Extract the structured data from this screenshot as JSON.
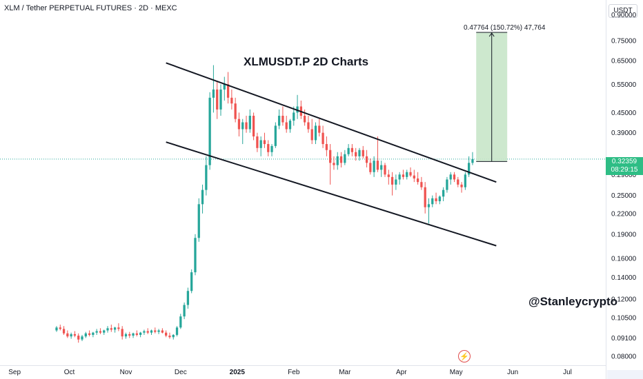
{
  "header": {
    "symbol_line": "XLM / Tether PERPETUAL FUTURES · 2D · MEXC",
    "currency": "USDT"
  },
  "annotations": {
    "title": "XLMUSDT.P 2D Charts",
    "measure": "0.47764 (150.72%) 47,764",
    "watermark": "@Stanleycrypto"
  },
  "price_tag": {
    "price": "0.32359",
    "countdown": "08:29:15"
  },
  "colors": {
    "up": "#26a69a",
    "down": "#ef5350",
    "target_zone": "#c8e6c9",
    "tag": "#2ebd85",
    "channel": "#131722"
  },
  "icons": {
    "logo": "tradingview-logo-icon"
  },
  "chart_data": {
    "type": "candlestick",
    "title": "XLMUSDT.P 2D Charts",
    "y_scale": "log",
    "ylim": [
      0.075,
      1.0
    ],
    "xlim": [
      "2024-08-24",
      "2025-07-22"
    ],
    "y_ticks": [
      "0.90000",
      "0.75000",
      "0.65000",
      "0.55000",
      "0.45000",
      "0.39000",
      "0.29000",
      "0.25000",
      "0.22000",
      "0.19000",
      "0.16000",
      "0.14000",
      "0.12000",
      "0.10500",
      "0.09100",
      "0.08000"
    ],
    "x_ticks": [
      {
        "label": "Sep",
        "date": "2024-09-01",
        "bold": false
      },
      {
        "label": "Oct",
        "date": "2024-10-01",
        "bold": false
      },
      {
        "label": "Nov",
        "date": "2024-11-01",
        "bold": false
      },
      {
        "label": "Dec",
        "date": "2024-12-01",
        "bold": false
      },
      {
        "label": "2025",
        "date": "2025-01-01",
        "bold": true
      },
      {
        "label": "Feb",
        "date": "2025-02-01",
        "bold": false
      },
      {
        "label": "Mar",
        "date": "2025-03-01",
        "bold": false
      },
      {
        "label": "Apr",
        "date": "2025-04-01",
        "bold": false
      },
      {
        "label": "May",
        "date": "2025-05-01",
        "bold": false
      },
      {
        "label": "Jun",
        "date": "2025-06-01",
        "bold": false
      },
      {
        "label": "Jul",
        "date": "2025-07-01",
        "bold": false
      }
    ],
    "last_price": 0.32359,
    "channel": {
      "upper": [
        [
          "2024-11-23",
          0.64
        ],
        [
          "2025-05-23",
          0.275
        ]
      ],
      "lower": [
        [
          "2024-11-23",
          0.365
        ],
        [
          "2025-05-23",
          0.175
        ]
      ]
    },
    "target_zone": {
      "x": [
        "2025-05-12",
        "2025-05-29"
      ],
      "y": [
        0.318,
        0.795
      ],
      "change": "0.47764 (150.72%)"
    },
    "candles": [
      {
        "o": 0.096,
        "h": 0.099,
        "l": 0.095,
        "c": 0.098
      },
      {
        "o": 0.098,
        "h": 0.1,
        "l": 0.096,
        "c": 0.097
      },
      {
        "o": 0.097,
        "h": 0.099,
        "l": 0.093,
        "c": 0.094
      },
      {
        "o": 0.094,
        "h": 0.096,
        "l": 0.091,
        "c": 0.092
      },
      {
        "o": 0.092,
        "h": 0.0945,
        "l": 0.0905,
        "c": 0.0935
      },
      {
        "o": 0.0935,
        "h": 0.0955,
        "l": 0.0915,
        "c": 0.0925
      },
      {
        "o": 0.0925,
        "h": 0.094,
        "l": 0.088,
        "c": 0.09
      },
      {
        "o": 0.09,
        "h": 0.093,
        "l": 0.089,
        "c": 0.092
      },
      {
        "o": 0.092,
        "h": 0.095,
        "l": 0.091,
        "c": 0.094
      },
      {
        "o": 0.094,
        "h": 0.096,
        "l": 0.092,
        "c": 0.093
      },
      {
        "o": 0.093,
        "h": 0.095,
        "l": 0.0915,
        "c": 0.0945
      },
      {
        "o": 0.0945,
        "h": 0.097,
        "l": 0.093,
        "c": 0.0955
      },
      {
        "o": 0.0955,
        "h": 0.0975,
        "l": 0.0935,
        "c": 0.0945
      },
      {
        "o": 0.0945,
        "h": 0.0965,
        "l": 0.093,
        "c": 0.096
      },
      {
        "o": 0.096,
        "h": 0.099,
        "l": 0.0945,
        "c": 0.0975
      },
      {
        "o": 0.0975,
        "h": 0.1,
        "l": 0.095,
        "c": 0.0965
      },
      {
        "o": 0.0965,
        "h": 0.0985,
        "l": 0.0945,
        "c": 0.098
      },
      {
        "o": 0.098,
        "h": 0.101,
        "l": 0.0955,
        "c": 0.097
      },
      {
        "o": 0.097,
        "h": 0.099,
        "l": 0.09,
        "c": 0.092
      },
      {
        "o": 0.092,
        "h": 0.0945,
        "l": 0.0905,
        "c": 0.0935
      },
      {
        "o": 0.0935,
        "h": 0.095,
        "l": 0.091,
        "c": 0.0925
      },
      {
        "o": 0.0925,
        "h": 0.0945,
        "l": 0.091,
        "c": 0.094
      },
      {
        "o": 0.094,
        "h": 0.096,
        "l": 0.092,
        "c": 0.093
      },
      {
        "o": 0.093,
        "h": 0.095,
        "l": 0.0915,
        "c": 0.0945
      },
      {
        "o": 0.0945,
        "h": 0.0965,
        "l": 0.093,
        "c": 0.0955
      },
      {
        "o": 0.0955,
        "h": 0.0975,
        "l": 0.0935,
        "c": 0.0945
      },
      {
        "o": 0.0945,
        "h": 0.0965,
        "l": 0.093,
        "c": 0.096
      },
      {
        "o": 0.096,
        "h": 0.098,
        "l": 0.094,
        "c": 0.095
      },
      {
        "o": 0.095,
        "h": 0.097,
        "l": 0.0935,
        "c": 0.096
      },
      {
        "o": 0.096,
        "h": 0.0975,
        "l": 0.094,
        "c": 0.0945
      },
      {
        "o": 0.0945,
        "h": 0.096,
        "l": 0.0915,
        "c": 0.0925
      },
      {
        "o": 0.0925,
        "h": 0.0945,
        "l": 0.0905,
        "c": 0.0915
      },
      {
        "o": 0.0915,
        "h": 0.0935,
        "l": 0.09,
        "c": 0.093
      },
      {
        "o": 0.093,
        "h": 0.099,
        "l": 0.092,
        "c": 0.098
      },
      {
        "o": 0.098,
        "h": 0.108,
        "l": 0.097,
        "c": 0.106
      },
      {
        "o": 0.106,
        "h": 0.117,
        "l": 0.104,
        "c": 0.115
      },
      {
        "o": 0.115,
        "h": 0.13,
        "l": 0.112,
        "c": 0.127
      },
      {
        "o": 0.127,
        "h": 0.148,
        "l": 0.125,
        "c": 0.145
      },
      {
        "o": 0.145,
        "h": 0.19,
        "l": 0.142,
        "c": 0.185
      },
      {
        "o": 0.185,
        "h": 0.245,
        "l": 0.18,
        "c": 0.235
      },
      {
        "o": 0.235,
        "h": 0.27,
        "l": 0.22,
        "c": 0.26
      },
      {
        "o": 0.26,
        "h": 0.33,
        "l": 0.25,
        "c": 0.31
      },
      {
        "o": 0.31,
        "h": 0.52,
        "l": 0.3,
        "c": 0.5
      },
      {
        "o": 0.5,
        "h": 0.63,
        "l": 0.45,
        "c": 0.53
      },
      {
        "o": 0.53,
        "h": 0.56,
        "l": 0.43,
        "c": 0.46
      },
      {
        "o": 0.46,
        "h": 0.55,
        "l": 0.44,
        "c": 0.53
      },
      {
        "o": 0.53,
        "h": 0.58,
        "l": 0.49,
        "c": 0.55
      },
      {
        "o": 0.55,
        "h": 0.6,
        "l": 0.48,
        "c": 0.5
      },
      {
        "o": 0.5,
        "h": 0.53,
        "l": 0.46,
        "c": 0.48
      },
      {
        "o": 0.48,
        "h": 0.5,
        "l": 0.42,
        "c": 0.43
      },
      {
        "o": 0.43,
        "h": 0.45,
        "l": 0.38,
        "c": 0.4
      },
      {
        "o": 0.4,
        "h": 0.43,
        "l": 0.36,
        "c": 0.42
      },
      {
        "o": 0.42,
        "h": 0.44,
        "l": 0.39,
        "c": 0.4
      },
      {
        "o": 0.4,
        "h": 0.46,
        "l": 0.39,
        "c": 0.44
      },
      {
        "o": 0.44,
        "h": 0.45,
        "l": 0.37,
        "c": 0.38
      },
      {
        "o": 0.38,
        "h": 0.39,
        "l": 0.34,
        "c": 0.35
      },
      {
        "o": 0.35,
        "h": 0.38,
        "l": 0.33,
        "c": 0.37
      },
      {
        "o": 0.37,
        "h": 0.39,
        "l": 0.35,
        "c": 0.36
      },
      {
        "o": 0.36,
        "h": 0.37,
        "l": 0.33,
        "c": 0.34
      },
      {
        "o": 0.34,
        "h": 0.36,
        "l": 0.33,
        "c": 0.355
      },
      {
        "o": 0.355,
        "h": 0.42,
        "l": 0.35,
        "c": 0.41
      },
      {
        "o": 0.41,
        "h": 0.46,
        "l": 0.4,
        "c": 0.44
      },
      {
        "o": 0.44,
        "h": 0.47,
        "l": 0.41,
        "c": 0.42
      },
      {
        "o": 0.42,
        "h": 0.44,
        "l": 0.39,
        "c": 0.4
      },
      {
        "o": 0.4,
        "h": 0.43,
        "l": 0.39,
        "c": 0.425
      },
      {
        "o": 0.425,
        "h": 0.47,
        "l": 0.41,
        "c": 0.45
      },
      {
        "o": 0.45,
        "h": 0.51,
        "l": 0.43,
        "c": 0.47
      },
      {
        "o": 0.47,
        "h": 0.49,
        "l": 0.43,
        "c": 0.44
      },
      {
        "o": 0.44,
        "h": 0.46,
        "l": 0.41,
        "c": 0.42
      },
      {
        "o": 0.42,
        "h": 0.44,
        "l": 0.39,
        "c": 0.4
      },
      {
        "o": 0.4,
        "h": 0.43,
        "l": 0.36,
        "c": 0.37
      },
      {
        "o": 0.37,
        "h": 0.42,
        "l": 0.36,
        "c": 0.41
      },
      {
        "o": 0.41,
        "h": 0.43,
        "l": 0.38,
        "c": 0.39
      },
      {
        "o": 0.39,
        "h": 0.41,
        "l": 0.35,
        "c": 0.36
      },
      {
        "o": 0.36,
        "h": 0.38,
        "l": 0.33,
        "c": 0.345
      },
      {
        "o": 0.345,
        "h": 0.36,
        "l": 0.27,
        "c": 0.315
      },
      {
        "o": 0.315,
        "h": 0.33,
        "l": 0.3,
        "c": 0.31
      },
      {
        "o": 0.31,
        "h": 0.34,
        "l": 0.3,
        "c": 0.33
      },
      {
        "o": 0.33,
        "h": 0.34,
        "l": 0.305,
        "c": 0.315
      },
      {
        "o": 0.315,
        "h": 0.345,
        "l": 0.31,
        "c": 0.335
      },
      {
        "o": 0.335,
        "h": 0.36,
        "l": 0.33,
        "c": 0.35
      },
      {
        "o": 0.35,
        "h": 0.36,
        "l": 0.33,
        "c": 0.34
      },
      {
        "o": 0.34,
        "h": 0.35,
        "l": 0.32,
        "c": 0.33
      },
      {
        "o": 0.33,
        "h": 0.35,
        "l": 0.32,
        "c": 0.345
      },
      {
        "o": 0.345,
        "h": 0.355,
        "l": 0.325,
        "c": 0.33
      },
      {
        "o": 0.33,
        "h": 0.345,
        "l": 0.305,
        "c": 0.315
      },
      {
        "o": 0.315,
        "h": 0.325,
        "l": 0.29,
        "c": 0.295
      },
      {
        "o": 0.295,
        "h": 0.33,
        "l": 0.285,
        "c": 0.32
      },
      {
        "o": 0.32,
        "h": 0.38,
        "l": 0.295,
        "c": 0.3
      },
      {
        "o": 0.3,
        "h": 0.32,
        "l": 0.285,
        "c": 0.31
      },
      {
        "o": 0.31,
        "h": 0.315,
        "l": 0.285,
        "c": 0.29
      },
      {
        "o": 0.29,
        "h": 0.3,
        "l": 0.27,
        "c": 0.285
      },
      {
        "o": 0.285,
        "h": 0.295,
        "l": 0.25,
        "c": 0.27
      },
      {
        "o": 0.27,
        "h": 0.29,
        "l": 0.26,
        "c": 0.28
      },
      {
        "o": 0.28,
        "h": 0.295,
        "l": 0.27,
        "c": 0.29
      },
      {
        "o": 0.29,
        "h": 0.3,
        "l": 0.28,
        "c": 0.285
      },
      {
        "o": 0.285,
        "h": 0.3,
        "l": 0.28,
        "c": 0.295
      },
      {
        "o": 0.295,
        "h": 0.305,
        "l": 0.285,
        "c": 0.288
      },
      {
        "o": 0.288,
        "h": 0.3,
        "l": 0.275,
        "c": 0.282
      },
      {
        "o": 0.282,
        "h": 0.295,
        "l": 0.27,
        "c": 0.275
      },
      {
        "o": 0.275,
        "h": 0.285,
        "l": 0.26,
        "c": 0.265
      },
      {
        "o": 0.265,
        "h": 0.275,
        "l": 0.22,
        "c": 0.23
      },
      {
        "o": 0.23,
        "h": 0.245,
        "l": 0.205,
        "c": 0.235
      },
      {
        "o": 0.235,
        "h": 0.25,
        "l": 0.23,
        "c": 0.245
      },
      {
        "o": 0.245,
        "h": 0.255,
        "l": 0.235,
        "c": 0.24
      },
      {
        "o": 0.24,
        "h": 0.25,
        "l": 0.235,
        "c": 0.248
      },
      {
        "o": 0.248,
        "h": 0.265,
        "l": 0.24,
        "c": 0.26
      },
      {
        "o": 0.26,
        "h": 0.285,
        "l": 0.255,
        "c": 0.28
      },
      {
        "o": 0.28,
        "h": 0.295,
        "l": 0.27,
        "c": 0.29
      },
      {
        "o": 0.29,
        "h": 0.295,
        "l": 0.275,
        "c": 0.28
      },
      {
        "o": 0.28,
        "h": 0.285,
        "l": 0.265,
        "c": 0.27
      },
      {
        "o": 0.27,
        "h": 0.275,
        "l": 0.255,
        "c": 0.265
      },
      {
        "o": 0.265,
        "h": 0.295,
        "l": 0.26,
        "c": 0.29
      },
      {
        "o": 0.29,
        "h": 0.33,
        "l": 0.285,
        "c": 0.315
      },
      {
        "o": 0.315,
        "h": 0.34,
        "l": 0.31,
        "c": 0.3236
      }
    ]
  }
}
